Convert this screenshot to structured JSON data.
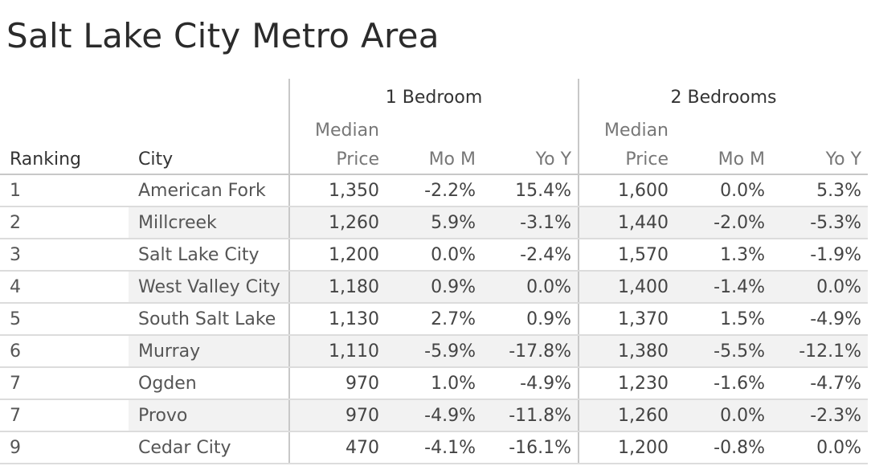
{
  "title": "Salt Lake City Metro Area",
  "chart_data": {
    "type": "table",
    "title": "Salt Lake City Metro Area",
    "column_groups": [
      "1 Bedroom",
      "2 Bedrooms"
    ],
    "subheaders": {
      "ranking": "Ranking",
      "city": "City",
      "median_top": "Median",
      "median_bottom": "Price",
      "mom": "Mo M",
      "yoy": "Yo Y"
    },
    "rows": [
      {
        "rank": "1",
        "city": "American Fork",
        "b1_price": "1,350",
        "b1_mom": "-2.2%",
        "b1_yoy": "15.4%",
        "b2_price": "1,600",
        "b2_mom": "0.0%",
        "b2_yoy": "5.3%"
      },
      {
        "rank": "2",
        "city": "Millcreek",
        "b1_price": "1,260",
        "b1_mom": "5.9%",
        "b1_yoy": "-3.1%",
        "b2_price": "1,440",
        "b2_mom": "-2.0%",
        "b2_yoy": "-5.3%"
      },
      {
        "rank": "3",
        "city": "Salt Lake City",
        "b1_price": "1,200",
        "b1_mom": "0.0%",
        "b1_yoy": "-2.4%",
        "b2_price": "1,570",
        "b2_mom": "1.3%",
        "b2_yoy": "-1.9%"
      },
      {
        "rank": "4",
        "city": "West Valley City",
        "b1_price": "1,180",
        "b1_mom": "0.9%",
        "b1_yoy": "0.0%",
        "b2_price": "1,400",
        "b2_mom": "-1.4%",
        "b2_yoy": "0.0%"
      },
      {
        "rank": "5",
        "city": "South Salt Lake",
        "b1_price": "1,130",
        "b1_mom": "2.7%",
        "b1_yoy": "0.9%",
        "b2_price": "1,370",
        "b2_mom": "1.5%",
        "b2_yoy": "-4.9%"
      },
      {
        "rank": "6",
        "city": "Murray",
        "b1_price": "1,110",
        "b1_mom": "-5.9%",
        "b1_yoy": "-17.8%",
        "b2_price": "1,380",
        "b2_mom": "-5.5%",
        "b2_yoy": "-12.1%"
      },
      {
        "rank": "7",
        "city": "Ogden",
        "b1_price": "970",
        "b1_mom": "1.0%",
        "b1_yoy": "-4.9%",
        "b2_price": "1,230",
        "b2_mom": "-1.6%",
        "b2_yoy": "-4.7%"
      },
      {
        "rank": "7",
        "city": "Provo",
        "b1_price": "970",
        "b1_mom": "-4.9%",
        "b1_yoy": "-11.8%",
        "b2_price": "1,260",
        "b2_mom": "0.0%",
        "b2_yoy": "-2.3%"
      },
      {
        "rank": "9",
        "city": "Cedar City",
        "b1_price": "470",
        "b1_mom": "-4.1%",
        "b1_yoy": "-16.1%",
        "b2_price": "1,200",
        "b2_mom": "-0.8%",
        "b2_yoy": "0.0%"
      }
    ]
  }
}
